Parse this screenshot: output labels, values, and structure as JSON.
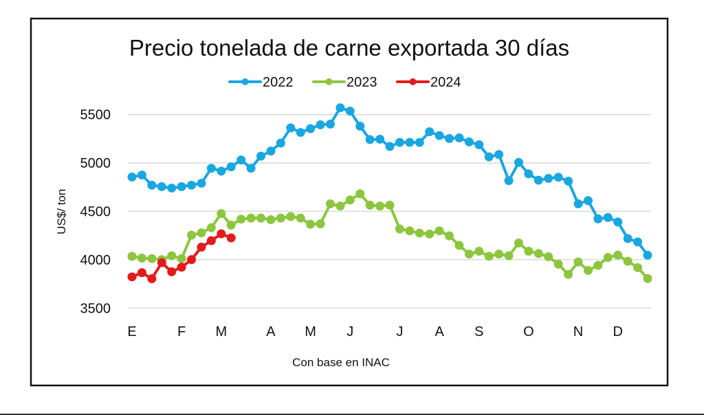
{
  "chart_data": {
    "type": "line",
    "title": "Precio tonelada de carne exportada 30 días",
    "xlabel": "Con base en INAC",
    "ylabel": "US$/ ton",
    "ylim": [
      3500,
      5500
    ],
    "yticks": [
      3500,
      4000,
      4500,
      5000,
      5500
    ],
    "grid": true,
    "legend_position": "top-center",
    "x_tick_labels": [
      {
        "label": "E",
        "index": 0
      },
      {
        "label": "F",
        "index": 5
      },
      {
        "label": "M",
        "index": 9
      },
      {
        "label": "A",
        "index": 14
      },
      {
        "label": "M",
        "index": 18
      },
      {
        "label": "J",
        "index": 22
      },
      {
        "label": "J",
        "index": 27
      },
      {
        "label": "A",
        "index": 31
      },
      {
        "label": "S",
        "index": 35
      },
      {
        "label": "O",
        "index": 40
      },
      {
        "label": "N",
        "index": 45
      },
      {
        "label": "D",
        "index": 49
      }
    ],
    "n_points": 53,
    "series": [
      {
        "name": "2022",
        "color": "#1aa7e0",
        "values": [
          4854,
          4875,
          4770,
          4755,
          4740,
          4755,
          4770,
          4790,
          4945,
          4915,
          4960,
          5030,
          4945,
          5070,
          5122,
          5205,
          5362,
          5315,
          5354,
          5394,
          5401,
          5570,
          5535,
          5380,
          5241,
          5245,
          5170,
          5212,
          5212,
          5212,
          5322,
          5283,
          5252,
          5259,
          5217,
          5188,
          5063,
          5087,
          4817,
          5005,
          4887,
          4821,
          4840,
          4852,
          4812,
          4577,
          4610,
          4422,
          4436,
          4389,
          4218,
          4183,
          4046
        ]
      },
      {
        "name": "2023",
        "color": "#8cc63f",
        "values": [
          4035,
          4016,
          4011,
          4000,
          4040,
          4011,
          4253,
          4277,
          4330,
          4476,
          4357,
          4418,
          4430,
          4430,
          4413,
          4430,
          4446,
          4430,
          4366,
          4370,
          4577,
          4554,
          4617,
          4680,
          4563,
          4554,
          4563,
          4317,
          4298,
          4275,
          4265,
          4298,
          4246,
          4148,
          4058,
          4087,
          4035,
          4058,
          4040,
          4172,
          4087,
          4063,
          4030,
          3953,
          3847,
          3976,
          3889,
          3941,
          4023,
          4047,
          3983,
          3918,
          3805
        ]
      },
      {
        "name": "2024",
        "color": "#e31b1b",
        "values": [
          3822,
          3865,
          3803,
          3969,
          3875,
          3922,
          4000,
          4130,
          4196,
          4267,
          4225
        ]
      }
    ]
  }
}
